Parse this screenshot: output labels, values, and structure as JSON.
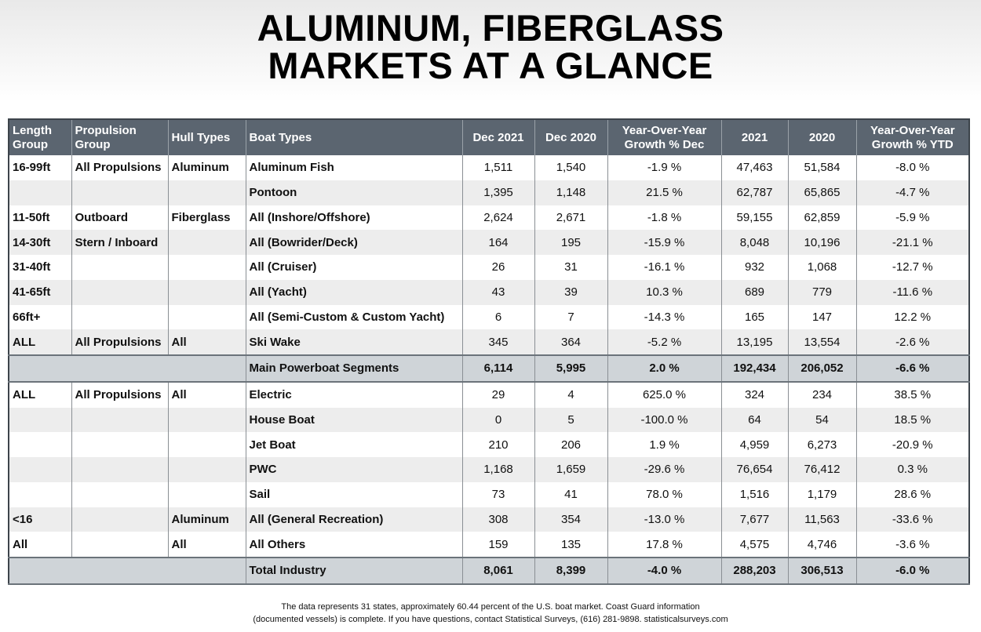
{
  "title": {
    "lines": [
      "ALUMINUM, FIBERGLASS",
      "MARKETS AT A GLANCE"
    ]
  },
  "table": {
    "columns": [
      "Length Group",
      "Propulsion Group",
      "Hull Types",
      "Boat Types",
      "Dec 2021",
      "Dec 2020",
      "Year-Over-Year Growth % Dec",
      "2021",
      "2020",
      "Year-Over-Year Growth % YTD"
    ],
    "sections": [
      {
        "rows": [
          {
            "length": "16-99ft",
            "propulsion": "All Propulsions",
            "hull": "Aluminum",
            "boat": "Aluminum Fish",
            "values": [
              "1,511",
              "1,540",
              "-1.9 %",
              "47,463",
              "51,584",
              "-8.0 %"
            ]
          },
          {
            "boat": "Pontoon",
            "values": [
              "1,395",
              "1,148",
              "21.5 %",
              "62,787",
              "65,865",
              "-4.7 %"
            ]
          },
          {
            "length": "11-50ft",
            "propulsion": "Outboard",
            "hull": "Fiberglass",
            "boat": "All (Inshore/Offshore)",
            "values": [
              "2,624",
              "2,671",
              "-1.8 %",
              "59,155",
              "62,859",
              "-5.9 %"
            ]
          },
          {
            "length": "14-30ft",
            "propulsion": "Stern / Inboard",
            "boat": "All (Bowrider/Deck)",
            "values": [
              "164",
              "195",
              "-15.9 %",
              "8,048",
              "10,196",
              "-21.1 %"
            ]
          },
          {
            "length": "31-40ft",
            "boat": "All (Cruiser)",
            "values": [
              "26",
              "31",
              "-16.1 %",
              "932",
              "1,068",
              "-12.7 %"
            ]
          },
          {
            "length": "41-65ft",
            "boat": "All (Yacht)",
            "values": [
              "43",
              "39",
              "10.3 %",
              "689",
              "779",
              "-11.6 %"
            ]
          },
          {
            "length": "66ft+",
            "boat": "All (Semi-Custom & Custom Yacht)",
            "values": [
              "6",
              "7",
              "-14.3 %",
              "165",
              "147",
              "12.2 %"
            ]
          },
          {
            "length": "ALL",
            "propulsion": "All Propulsions",
            "hull": "All",
            "boat": "Ski Wake",
            "values": [
              "345",
              "364",
              "-5.2 %",
              "13,195",
              "13,554",
              "-2.6 %"
            ]
          }
        ],
        "summary": {
          "label": "Main Powerboat Segments",
          "values": [
            "6,114",
            "5,995",
            "2.0 %",
            "192,434",
            "206,052",
            "-6.6 %"
          ]
        }
      },
      {
        "rows": [
          {
            "length": "ALL",
            "propulsion": "All Propulsions",
            "hull": "All",
            "boat": "Electric",
            "values": [
              "29",
              "4",
              "625.0 %",
              "324",
              "234",
              "38.5 %"
            ]
          },
          {
            "boat": "House Boat",
            "values": [
              "0",
              "5",
              "-100.0 %",
              "64",
              "54",
              "18.5 %"
            ]
          },
          {
            "boat": "Jet Boat",
            "values": [
              "210",
              "206",
              "1.9 %",
              "4,959",
              "6,273",
              "-20.9 %"
            ]
          },
          {
            "boat": "PWC",
            "values": [
              "1,168",
              "1,659",
              "-29.6 %",
              "76,654",
              "76,412",
              "0.3 %"
            ]
          },
          {
            "boat": "Sail",
            "values": [
              "73",
              "41",
              "78.0 %",
              "1,516",
              "1,179",
              "28.6 %"
            ]
          },
          {
            "length": "<16",
            "hull": "Aluminum",
            "boat": "All (General Recreation)",
            "values": [
              "308",
              "354",
              "-13.0 %",
              "7,677",
              "11,563",
              "-33.6 %"
            ]
          },
          {
            "length": "All",
            "hull": "All",
            "boat": "All Others",
            "values": [
              "159",
              "135",
              "17.8 %",
              "4,575",
              "4,746",
              "-3.6 %"
            ]
          }
        ],
        "summary": {
          "label": "Total Industry",
          "values": [
            "8,061",
            "8,399",
            "-4.0 %",
            "288,203",
            "306,513",
            "-6.0 %"
          ]
        }
      }
    ]
  },
  "footnote": {
    "lines": [
      "The data represents 31 states, approximately 60.44 percent of the U.S. boat market. Coast Guard information",
      "(documented vessels) is complete. If you have questions, contact Statistical Surveys, (616) 281-9898. statisticalsurveys.com"
    ]
  }
}
